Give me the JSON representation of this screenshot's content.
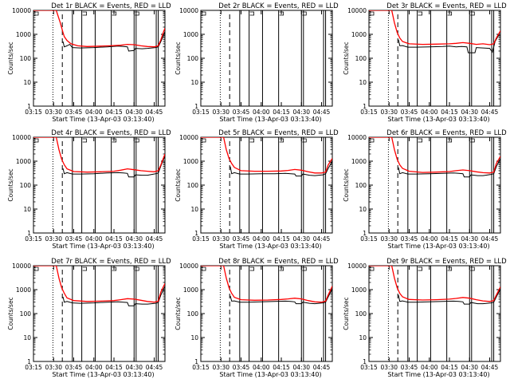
{
  "figure": {
    "xlabel": "Start Time (13-Apr-03 03:13:40)",
    "ylabel": "Counts/sec"
  },
  "chart_data": {
    "type": "line",
    "x_tick_labels": [
      "03:15",
      "03:30",
      "03:45",
      "04:00",
      "04:15",
      "04:30",
      "04:45"
    ],
    "x_ticks_min": [
      15,
      30,
      45,
      60,
      75,
      90,
      105
    ],
    "xlim_min": [
      15,
      113
    ],
    "y_tick_labels": [
      "1",
      "10",
      "100",
      "1000",
      "10000"
    ],
    "ylim": [
      1,
      10000
    ],
    "y_scale": "log",
    "colors": {
      "events": "#000000",
      "lld": "#ff0000"
    },
    "markers": {
      "dotted_line_min": 29.5,
      "dashed_line_min": 36.5,
      "solid_lines_min": [
        44,
        51,
        61,
        73,
        90,
        91.5,
        106.5,
        108
      ]
    },
    "panels": [
      {
        "title": "Det 1r BLACK = Events, RED = LLD",
        "has_ylabel": true,
        "lld": [
          [
            15,
            10000
          ],
          [
            32,
            10000
          ],
          [
            35,
            3000
          ],
          [
            37,
            1200
          ],
          [
            38,
            800
          ],
          [
            40,
            550
          ],
          [
            43,
            400
          ],
          [
            48,
            330
          ],
          [
            55,
            310
          ],
          [
            65,
            320
          ],
          [
            72,
            330
          ],
          [
            80,
            350
          ],
          [
            85,
            380
          ],
          [
            90,
            370
          ],
          [
            95,
            330
          ],
          [
            100,
            310
          ],
          [
            105,
            300
          ],
          [
            108,
            330
          ],
          [
            110,
            600
          ],
          [
            112,
            1300
          ],
          [
            113,
            1800
          ]
        ],
        "events": [
          [
            37,
            500
          ],
          [
            38,
            300
          ],
          [
            40,
            330
          ],
          [
            42,
            380
          ],
          [
            44,
            280
          ],
          [
            50,
            270
          ],
          [
            60,
            280
          ],
          [
            70,
            300
          ],
          [
            78,
            320
          ],
          [
            82,
            310
          ],
          [
            85,
            300
          ],
          [
            86,
            200
          ],
          [
            90,
            210
          ],
          [
            91,
            260
          ],
          [
            96,
            250
          ],
          [
            100,
            260
          ],
          [
            106,
            280
          ],
          [
            108,
            300
          ],
          [
            110,
            500
          ],
          [
            113,
            1300
          ]
        ]
      },
      {
        "title": "Det 2r BLACK = Events, RED = LLD",
        "has_ylabel": true,
        "lld": [],
        "events": []
      },
      {
        "title": "Det 3r BLACK = Events, RED = LLD",
        "has_ylabel": true,
        "lld": [
          [
            15,
            10000
          ],
          [
            32,
            10000
          ],
          [
            34,
            3000
          ],
          [
            36,
            1200
          ],
          [
            38,
            700
          ],
          [
            40,
            500
          ],
          [
            45,
            400
          ],
          [
            55,
            380
          ],
          [
            65,
            390
          ],
          [
            75,
            400
          ],
          [
            80,
            420
          ],
          [
            85,
            450
          ],
          [
            90,
            420
          ],
          [
            95,
            380
          ],
          [
            100,
            400
          ],
          [
            105,
            370
          ],
          [
            108,
            400
          ],
          [
            110,
            700
          ],
          [
            113,
            1400
          ]
        ],
        "events": [
          [
            37,
            600
          ],
          [
            38,
            330
          ],
          [
            40,
            340
          ],
          [
            44,
            290
          ],
          [
            50,
            290
          ],
          [
            60,
            300
          ],
          [
            70,
            310
          ],
          [
            75,
            320
          ],
          [
            80,
            300
          ],
          [
            84,
            310
          ],
          [
            88,
            300
          ],
          [
            89,
            170
          ],
          [
            94,
            170
          ],
          [
            95,
            280
          ],
          [
            100,
            270
          ],
          [
            105,
            260
          ],
          [
            107,
            180
          ],
          [
            109,
            500
          ],
          [
            112,
            1000
          ]
        ]
      },
      {
        "title": "Det 4r BLACK = Events, RED = LLD",
        "has_ylabel": true,
        "lld": [
          [
            15,
            10000
          ],
          [
            32,
            10000
          ],
          [
            34,
            3000
          ],
          [
            36,
            1200
          ],
          [
            38,
            700
          ],
          [
            40,
            480
          ],
          [
            45,
            370
          ],
          [
            55,
            350
          ],
          [
            65,
            360
          ],
          [
            75,
            380
          ],
          [
            80,
            420
          ],
          [
            85,
            480
          ],
          [
            90,
            440
          ],
          [
            95,
            400
          ],
          [
            100,
            380
          ],
          [
            105,
            360
          ],
          [
            108,
            400
          ],
          [
            110,
            700
          ],
          [
            113,
            2000
          ]
        ],
        "events": [
          [
            37,
            500
          ],
          [
            38,
            300
          ],
          [
            40,
            330
          ],
          [
            44,
            290
          ],
          [
            50,
            290
          ],
          [
            60,
            300
          ],
          [
            70,
            320
          ],
          [
            78,
            330
          ],
          [
            82,
            320
          ],
          [
            85,
            310
          ],
          [
            86,
            220
          ],
          [
            90,
            220
          ],
          [
            91,
            270
          ],
          [
            96,
            260
          ],
          [
            100,
            260
          ],
          [
            106,
            300
          ],
          [
            108,
            320
          ],
          [
            111,
            900
          ],
          [
            113,
            1600
          ]
        ]
      },
      {
        "title": "Det 5r BLACK = Events, RED = LLD",
        "has_ylabel": true,
        "lld": [
          [
            15,
            10000
          ],
          [
            32,
            10000
          ],
          [
            34,
            3000
          ],
          [
            36,
            1300
          ],
          [
            38,
            800
          ],
          [
            40,
            550
          ],
          [
            45,
            400
          ],
          [
            55,
            380
          ],
          [
            65,
            380
          ],
          [
            75,
            390
          ],
          [
            80,
            410
          ],
          [
            85,
            450
          ],
          [
            90,
            420
          ],
          [
            95,
            360
          ],
          [
            100,
            320
          ],
          [
            105,
            320
          ],
          [
            108,
            350
          ],
          [
            110,
            700
          ],
          [
            113,
            1300
          ]
        ],
        "events": [
          [
            37,
            600
          ],
          [
            38,
            300
          ],
          [
            40,
            330
          ],
          [
            44,
            290
          ],
          [
            50,
            290
          ],
          [
            60,
            300
          ],
          [
            70,
            300
          ],
          [
            78,
            310
          ],
          [
            82,
            300
          ],
          [
            85,
            290
          ],
          [
            86,
            240
          ],
          [
            90,
            240
          ],
          [
            91,
            290
          ],
          [
            96,
            260
          ],
          [
            100,
            250
          ],
          [
            106,
            270
          ],
          [
            108,
            300
          ],
          [
            110,
            500
          ],
          [
            113,
            1000
          ]
        ]
      },
      {
        "title": "Det 6r BLACK = Events, RED = LLD",
        "has_ylabel": true,
        "lld": [
          [
            15,
            10000
          ],
          [
            32,
            10000
          ],
          [
            34,
            3000
          ],
          [
            36,
            1200
          ],
          [
            38,
            700
          ],
          [
            40,
            500
          ],
          [
            45,
            380
          ],
          [
            55,
            340
          ],
          [
            65,
            350
          ],
          [
            75,
            370
          ],
          [
            80,
            400
          ],
          [
            85,
            430
          ],
          [
            90,
            400
          ],
          [
            95,
            360
          ],
          [
            100,
            330
          ],
          [
            105,
            320
          ],
          [
            108,
            350
          ],
          [
            110,
            800
          ],
          [
            113,
            1600
          ]
        ],
        "events": [
          [
            37,
            550
          ],
          [
            38,
            300
          ],
          [
            40,
            330
          ],
          [
            44,
            290
          ],
          [
            50,
            290
          ],
          [
            60,
            300
          ],
          [
            70,
            310
          ],
          [
            78,
            320
          ],
          [
            82,
            310
          ],
          [
            85,
            300
          ],
          [
            86,
            220
          ],
          [
            90,
            220
          ],
          [
            91,
            270
          ],
          [
            96,
            250
          ],
          [
            100,
            250
          ],
          [
            106,
            280
          ],
          [
            108,
            300
          ],
          [
            110,
            600
          ],
          [
            113,
            1300
          ]
        ]
      },
      {
        "title": "Det 7r BLACK = Events, RED = LLD",
        "has_ylabel": true,
        "lld": [
          [
            15,
            10000
          ],
          [
            32,
            10000
          ],
          [
            34,
            3000
          ],
          [
            36,
            1200
          ],
          [
            38,
            700
          ],
          [
            40,
            450
          ],
          [
            45,
            350
          ],
          [
            55,
            320
          ],
          [
            65,
            330
          ],
          [
            75,
            350
          ],
          [
            80,
            380
          ],
          [
            85,
            420
          ],
          [
            90,
            400
          ],
          [
            95,
            360
          ],
          [
            100,
            320
          ],
          [
            105,
            300
          ],
          [
            108,
            330
          ],
          [
            110,
            800
          ],
          [
            113,
            1800
          ]
        ],
        "events": [
          [
            37,
            500
          ],
          [
            38,
            300
          ],
          [
            40,
            320
          ],
          [
            44,
            280
          ],
          [
            50,
            270
          ],
          [
            60,
            280
          ],
          [
            70,
            300
          ],
          [
            78,
            310
          ],
          [
            82,
            300
          ],
          [
            85,
            290
          ],
          [
            86,
            210
          ],
          [
            90,
            210
          ],
          [
            91,
            260
          ],
          [
            96,
            250
          ],
          [
            100,
            250
          ],
          [
            106,
            270
          ],
          [
            108,
            290
          ],
          [
            110,
            600
          ],
          [
            113,
            1400
          ]
        ]
      },
      {
        "title": "Det 8r BLACK = Events, RED = LLD",
        "has_ylabel": true,
        "lld": [
          [
            15,
            10000
          ],
          [
            32,
            10000
          ],
          [
            34,
            3000
          ],
          [
            36,
            1200
          ],
          [
            38,
            700
          ],
          [
            40,
            480
          ],
          [
            45,
            380
          ],
          [
            55,
            360
          ],
          [
            65,
            370
          ],
          [
            75,
            390
          ],
          [
            80,
            410
          ],
          [
            85,
            440
          ],
          [
            90,
            410
          ],
          [
            95,
            350
          ],
          [
            100,
            310
          ],
          [
            105,
            300
          ],
          [
            108,
            330
          ],
          [
            110,
            600
          ],
          [
            113,
            1400
          ]
        ],
        "events": [
          [
            37,
            550
          ],
          [
            38,
            330
          ],
          [
            40,
            340
          ],
          [
            44,
            300
          ],
          [
            50,
            300
          ],
          [
            60,
            310
          ],
          [
            70,
            320
          ],
          [
            78,
            330
          ],
          [
            82,
            320
          ],
          [
            85,
            310
          ],
          [
            86,
            260
          ],
          [
            90,
            260
          ],
          [
            91,
            300
          ],
          [
            96,
            270
          ],
          [
            100,
            260
          ],
          [
            106,
            280
          ],
          [
            108,
            300
          ],
          [
            110,
            500
          ],
          [
            113,
            1100
          ]
        ]
      },
      {
        "title": "Det 9r BLACK = Events, RED = LLD",
        "has_ylabel": true,
        "lld": [
          [
            15,
            10000
          ],
          [
            32,
            10000
          ],
          [
            34,
            3000
          ],
          [
            36,
            1200
          ],
          [
            38,
            700
          ],
          [
            40,
            500
          ],
          [
            45,
            390
          ],
          [
            55,
            370
          ],
          [
            65,
            380
          ],
          [
            75,
            400
          ],
          [
            80,
            430
          ],
          [
            85,
            470
          ],
          [
            90,
            440
          ],
          [
            95,
            380
          ],
          [
            100,
            340
          ],
          [
            105,
            320
          ],
          [
            108,
            350
          ],
          [
            110,
            600
          ],
          [
            113,
            1300
          ]
        ],
        "events": [
          [
            37,
            600
          ],
          [
            38,
            320
          ],
          [
            40,
            340
          ],
          [
            44,
            300
          ],
          [
            50,
            300
          ],
          [
            60,
            310
          ],
          [
            70,
            320
          ],
          [
            78,
            330
          ],
          [
            82,
            320
          ],
          [
            85,
            310
          ],
          [
            86,
            250
          ],
          [
            90,
            250
          ],
          [
            91,
            290
          ],
          [
            96,
            260
          ],
          [
            100,
            260
          ],
          [
            106,
            280
          ],
          [
            108,
            300
          ],
          [
            110,
            500
          ],
          [
            113,
            1100
          ]
        ]
      }
    ]
  }
}
